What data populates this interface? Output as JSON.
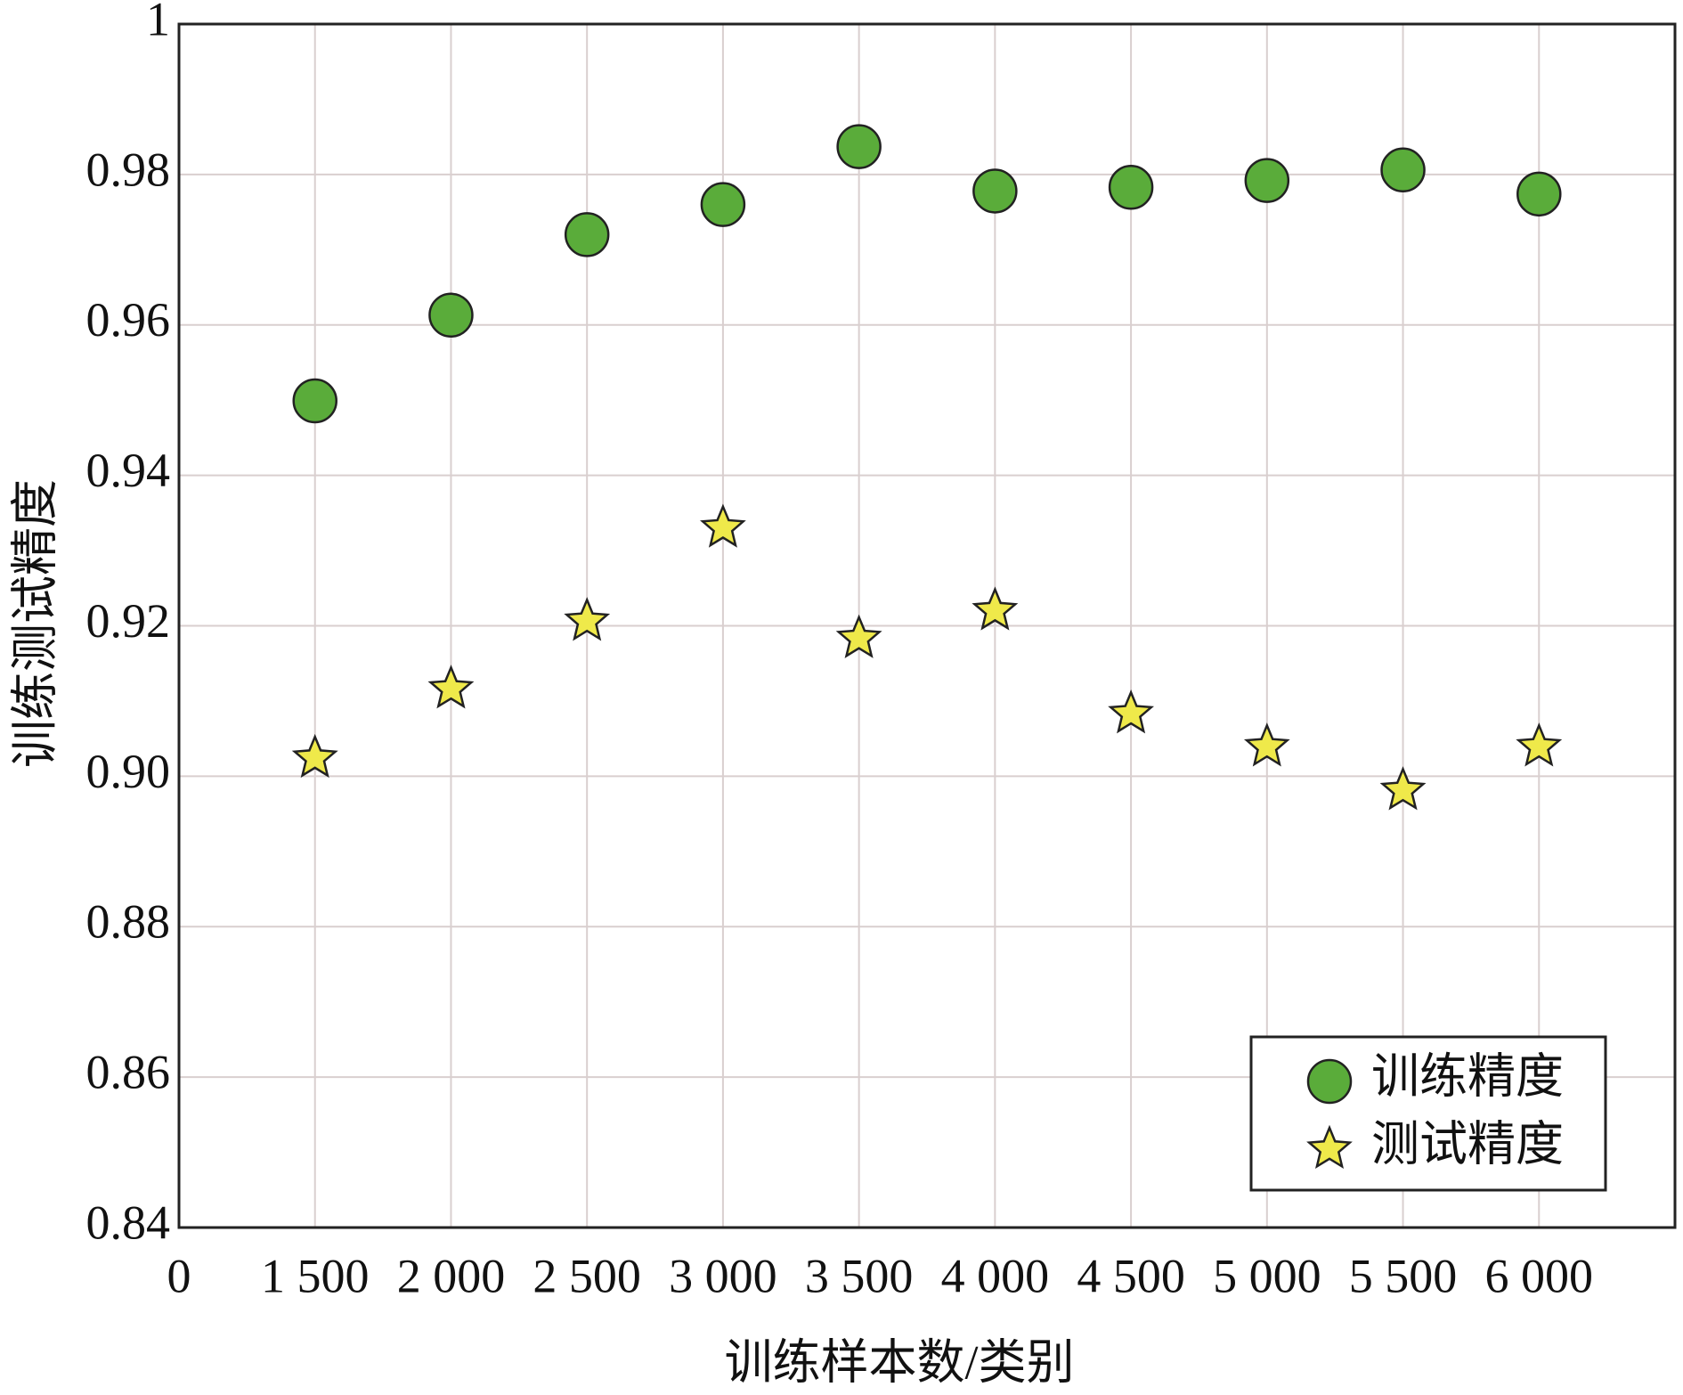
{
  "chart_data": {
    "type": "scatter",
    "xlabel": "训练样本数/类别",
    "ylabel": "训练测试精度",
    "x": [
      1,
      2,
      3,
      4,
      5,
      6,
      7,
      8,
      9,
      10
    ],
    "xlim": [
      0,
      11
    ],
    "xticks": [
      0,
      {
        "value": 1,
        "label": "1 500"
      },
      {
        "value": 2,
        "label": "2 000"
      },
      {
        "value": 3,
        "label": "2 500"
      },
      {
        "value": 4,
        "label": "3 000"
      },
      {
        "value": 5,
        "label": "3 500"
      },
      {
        "value": 6,
        "label": "4 000"
      },
      {
        "value": 7,
        "label": "4 500"
      },
      {
        "value": 8,
        "label": "5 000"
      },
      {
        "value": 9,
        "label": "5 500"
      },
      {
        "value": 10,
        "label": "6 000"
      }
    ],
    "ylim": [
      0.84,
      1
    ],
    "yticks": [
      0.84,
      0.86,
      0.88,
      {
        "value": 0.9,
        "label": "0.90"
      },
      0.92,
      0.94,
      0.96,
      0.98,
      1
    ],
    "grid": true,
    "legend": "lower right",
    "series": [
      {
        "name": "训练精度",
        "color": "#5aac3a",
        "marker": "circle",
        "values": [
          0.9499,
          0.9613,
          0.972,
          0.976,
          0.9837,
          0.9778,
          0.9783,
          0.9792,
          0.9806,
          0.9774
        ]
      },
      {
        "name": "测试精度",
        "color": "#efe94a",
        "marker": "star",
        "values": [
          0.9024,
          0.9116,
          0.9206,
          0.933,
          0.9183,
          0.922,
          0.9083,
          0.9039,
          0.8981,
          0.9039
        ]
      }
    ]
  }
}
